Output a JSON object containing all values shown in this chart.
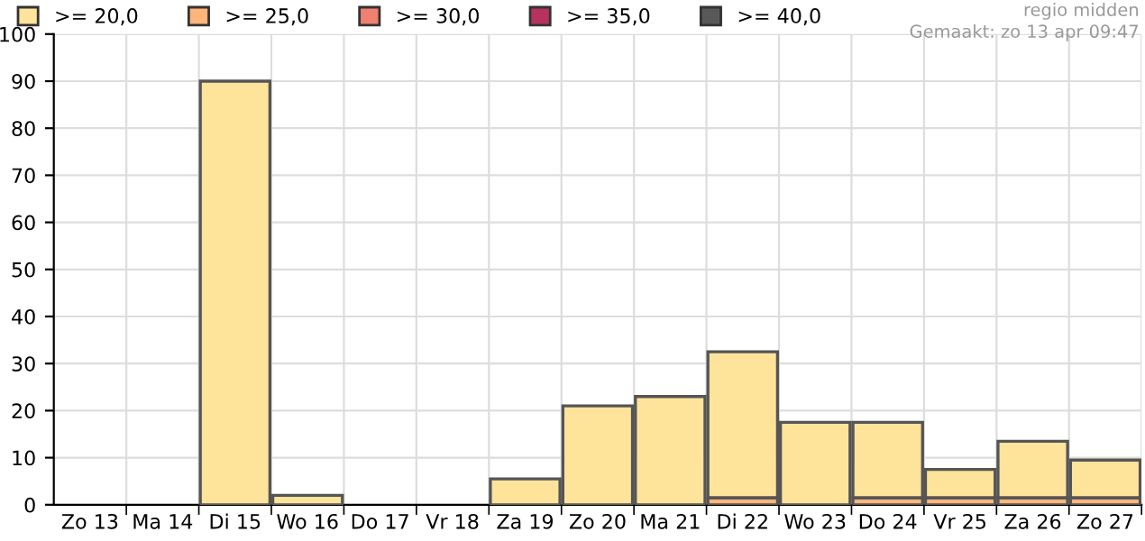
{
  "chart_data": {
    "type": "bar",
    "stacked": true,
    "categories": [
      "Zo 13",
      "Ma 14",
      "Di 15",
      "Wo 16",
      "Do 17",
      "Vr 18",
      "Za 19",
      "Zo 20",
      "Ma 21",
      "Di 22",
      "Wo 23",
      "Do 24",
      "Vr 25",
      "Za 26",
      "Zo 27"
    ],
    "series": [
      {
        "name": ">= 25,0",
        "color": "#fdb57a",
        "values": [
          0,
          0,
          0,
          0,
          0,
          0,
          0,
          0,
          0,
          1.5,
          0,
          1.5,
          1.5,
          1.5,
          1.5
        ]
      },
      {
        "name": ">= 20,0",
        "color": "#fee39b",
        "values": [
          0,
          0,
          90,
          2,
          0,
          0,
          5.5,
          21,
          23,
          31,
          17.5,
          16,
          6,
          12,
          8
        ]
      },
      {
        "name": ">= 30,0",
        "color": "#f08070",
        "values": [
          0,
          0,
          0,
          0,
          0,
          0,
          0,
          0,
          0,
          0,
          0,
          0,
          0,
          0,
          0
        ]
      },
      {
        "name": ">= 35,0",
        "color": "#b8325e",
        "values": [
          0,
          0,
          0,
          0,
          0,
          0,
          0,
          0,
          0,
          0,
          0,
          0,
          0,
          0,
          0
        ]
      },
      {
        "name": ">= 40,0",
        "color": "#595959",
        "values": [
          0,
          0,
          0,
          0,
          0,
          0,
          0,
          0,
          0,
          0,
          0,
          0,
          0,
          0,
          0
        ]
      }
    ],
    "ylim": [
      0,
      100
    ],
    "yticks": [
      0,
      10,
      20,
      30,
      40,
      50,
      60,
      70,
      80,
      90,
      100
    ],
    "grid": true,
    "legend": "top left",
    "annotations": [
      "regio midden",
      "Gemaakt: zo 13 apr 09:47"
    ]
  }
}
